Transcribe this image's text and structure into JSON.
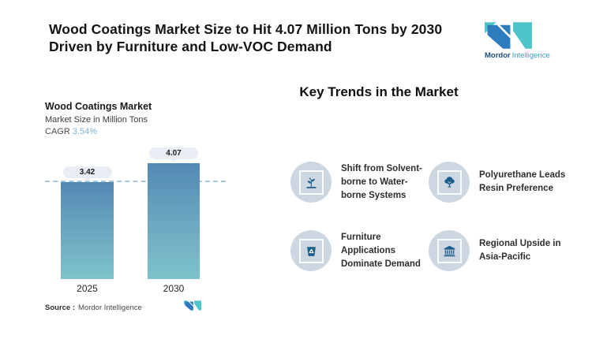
{
  "header": {
    "title_line1": "Wood Coatings Market Size to Hit 4.07 Million Tons by 2030",
    "title_line2": "Driven by Furniture and Low-VOC Demand"
  },
  "brand": {
    "name_primary": "Mordor",
    "name_secondary": "Intelligence",
    "blue": "#2e7cbe",
    "teal": "#4fc4c9"
  },
  "chart": {
    "title": "Wood Coatings Market",
    "subtitle": "Market Size in Million Tons",
    "cagr_label": "CAGR",
    "cagr_value": "3.54%",
    "source_label": "Source :",
    "source_value": "Mordor Intelligence"
  },
  "chart_data": {
    "type": "bar",
    "title": "Wood Coatings Market",
    "ylabel": "Market Size in Million Tons",
    "unit": "Million Tons",
    "categories": [
      "2025",
      "2030"
    ],
    "values": [
      3.42,
      4.07
    ],
    "value_labels": [
      "3.42",
      "4.07"
    ],
    "cagr_percent": 3.54,
    "ylim": [
      0,
      4.5
    ],
    "grid": false,
    "legend": "none",
    "reference_line_value": 3.42,
    "bar_color_top": "#5289b4",
    "bar_color_bottom": "#7ec2ca",
    "reference_line_color": "#a5c8de",
    "badge_background": "#e8eef3"
  },
  "trends": {
    "heading": "Key Trends in the Market",
    "items": [
      {
        "icon": "seedling-icon",
        "label": "Shift from Solvent-\nborne to Water-\nborne Systems"
      },
      {
        "icon": "tree-icon",
        "label": "Polyurethane Leads\nResin Preference"
      },
      {
        "icon": "recycle-bin-icon",
        "label": "Furniture\nApplications\nDominate Demand"
      },
      {
        "icon": "bank-icon",
        "label": "Regional Upside in\nAsia-Pacific"
      }
    ],
    "icon_color": "#1d5e8d",
    "circle_color": "#ccd7e2"
  }
}
